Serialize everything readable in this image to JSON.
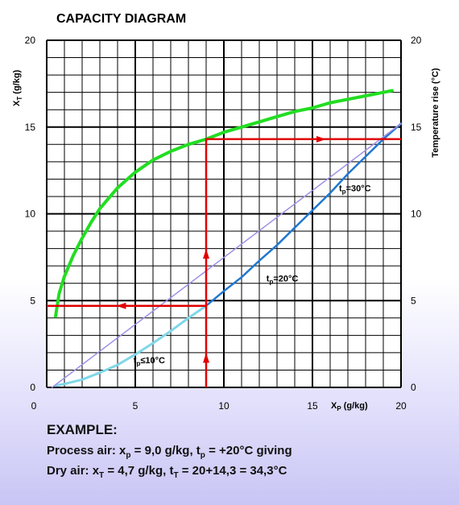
{
  "chart_data": {
    "type": "line",
    "title": "CAPACITY DIAGRAM",
    "ylabel_left": {
      "main": "X",
      "sub": "T",
      "rest": " (g/kg)"
    },
    "ylabel_right": "Temperature rise (°C)",
    "xlabel": {
      "main": "X",
      "sub": "P",
      "rest": " (g/kg)"
    },
    "xlim": [
      0,
      20
    ],
    "ylim": [
      0,
      20
    ],
    "x_ticks": [
      "0",
      "5",
      "10",
      "15",
      "20"
    ],
    "y_ticks_left": [
      "0",
      "5",
      "10",
      "15",
      "20"
    ],
    "y_ticks_right": [
      "0",
      "5",
      "10",
      "15",
      "20"
    ],
    "grid": true,
    "series": [
      {
        "axis": "right",
        "color": "#22dd22",
        "points": [
          [
            0.5,
            4.1
          ],
          [
            0.7,
            5.4
          ],
          [
            1,
            6.4
          ],
          [
            1.5,
            7.6
          ],
          [
            2,
            8.6
          ],
          [
            2.5,
            9.5
          ],
          [
            3,
            10.3
          ],
          [
            4,
            11.5
          ],
          [
            5,
            12.4
          ],
          [
            6,
            13.1
          ],
          [
            7,
            13.6
          ],
          [
            8,
            14.0
          ],
          [
            9,
            14.3
          ],
          [
            10,
            14.7
          ],
          [
            11,
            15.0
          ],
          [
            12,
            15.3
          ],
          [
            13,
            15.6
          ],
          [
            14,
            15.9
          ],
          [
            15,
            16.1
          ],
          [
            16,
            16.4
          ],
          [
            17,
            16.6
          ],
          [
            18,
            16.8
          ],
          [
            19,
            17.0
          ],
          [
            19.5,
            17.1
          ]
        ]
      },
      {
        "color": "#1f78d0",
        "points": [
          [
            0.5,
            0.1
          ],
          [
            1,
            0.2
          ],
          [
            2,
            0.45
          ],
          [
            3,
            0.85
          ],
          [
            4,
            1.3
          ],
          [
            5,
            1.9
          ],
          [
            6,
            2.55
          ],
          [
            7,
            3.25
          ],
          [
            8,
            4.0
          ],
          [
            9,
            4.7
          ],
          [
            10,
            5.55
          ],
          [
            11,
            6.35
          ],
          [
            12,
            7.3
          ],
          [
            13,
            8.2
          ],
          [
            14,
            9.2
          ],
          [
            15,
            10.2
          ],
          [
            16,
            11.2
          ],
          [
            17,
            12.3
          ],
          [
            18,
            13.3
          ],
          [
            19,
            14.3
          ],
          [
            20,
            15.2
          ]
        ]
      },
      {
        "color": "#80d8e8",
        "points": [
          [
            0.5,
            0.1
          ],
          [
            1,
            0.2
          ],
          [
            2,
            0.45
          ],
          [
            3,
            0.85
          ],
          [
            4,
            1.3
          ],
          [
            5,
            1.9
          ],
          [
            6,
            2.55
          ],
          [
            7,
            3.25
          ],
          [
            8,
            4.0
          ],
          [
            9,
            4.7
          ]
        ]
      },
      {
        "color": "#a090e6",
        "points": [
          [
            0.3,
            0
          ],
          [
            20,
            15.2
          ]
        ]
      }
    ],
    "annotations": [
      {
        "main": "t",
        "sub": "p",
        "rest": "≤10°C",
        "x": 4.9,
        "y": 1.4
      },
      {
        "main": "t",
        "sub": "p",
        "rest": "=20°C",
        "x": 12.4,
        "y": 6.1
      },
      {
        "main": "t",
        "sub": "p",
        "rest": "=30°C",
        "x": 16.5,
        "y": 11.3
      }
    ],
    "example_path": {
      "color": "#e00000",
      "points": [
        [
          9.0,
          0
        ],
        [
          9.0,
          4.7
        ],
        [
          0,
          4.7
        ],
        [
          9.0,
          4.7
        ],
        [
          9.0,
          14.3
        ],
        [
          20,
          14.3
        ]
      ]
    }
  },
  "example": {
    "heading": "EXAMPLE:",
    "line1": {
      "a": "Process air: x",
      "a_sub": "p",
      "b": " = 9,0 g/kg, t",
      "b_sub": "p",
      "c": " = +20°C giving"
    },
    "line2": {
      "a": "Dry air: x",
      "a_sub": "T",
      "b": " = 4,7 g/kg, t",
      "b_sub": "T",
      "c": " = 20+14,3 = 34,3°C"
    }
  }
}
